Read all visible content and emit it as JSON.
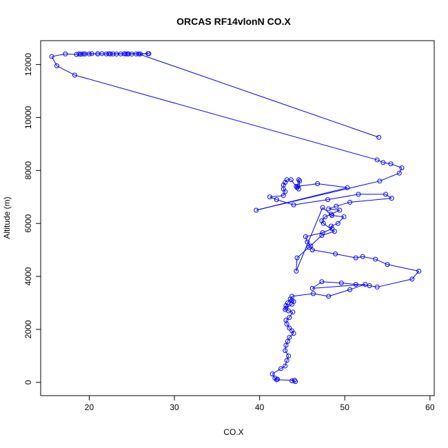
{
  "chart_data": {
    "type": "line",
    "title": "ORCAS RF14vlonN CO.X",
    "xlabel": "CO.X",
    "ylabel": "Altitude (m)",
    "xlim": [
      14.3,
      60.5
    ],
    "ylim": [
      -500,
      12900
    ],
    "xticks": [
      20,
      30,
      40,
      50,
      60
    ],
    "yticks": [
      0,
      2000,
      4000,
      6000,
      8000,
      10000,
      12000
    ],
    "grid": false,
    "legend": "none",
    "line_color": "#0000ff",
    "marker": "open-circle",
    "series": [
      {
        "x": [
          44.2,
          43.8,
          44.1,
          42.0,
          42.1,
          41.8,
          41.5,
          42.5,
          43.0,
          43.2,
          43.4,
          43.0,
          43.1,
          43.3,
          43.5,
          44.0,
          43.8,
          43.5,
          43.2,
          43.1,
          43.5,
          43.9,
          43.4,
          43.1,
          43.8,
          44.0,
          43.6,
          43.3,
          43.1,
          43.0,
          43.8,
          43.8,
          46.3,
          48.1,
          50.6,
          52.4,
          46.2,
          47.3,
          49.6,
          51.3,
          52.9,
          53.8,
          57.9,
          58.7,
          55.0,
          53.6,
          52.1,
          51.3,
          48.9,
          46.2,
          46.0,
          45.6,
          45.4,
          47.4,
          48.5,
          48.4,
          49.2,
          49.9,
          48.5,
          47.4,
          44.3,
          44.4,
          45.8,
          47.3,
          48.8,
          47.5,
          47.3,
          47.7,
          48.4,
          49.4,
          48.1,
          49.0,
          50.6,
          55.5,
          54.8,
          51.6,
          48.0,
          44.0,
          42.0,
          41.2,
          42.8,
          43.0,
          42.8,
          42.8,
          43.0,
          43.2,
          43.7,
          44.3,
          44.6,
          44.7,
          44.6,
          44.4,
          44.5,
          46.8,
          50.3,
          39.6,
          54.1,
          56.4,
          56.7,
          55.4,
          54.5,
          53.8,
          18.3,
          16.2,
          15.6,
          17.2,
          18.5,
          19.0,
          19.5,
          20.3,
          21.0,
          21.5,
          22.0,
          22.3,
          22.8,
          23.2,
          23.7,
          24.1,
          24.3,
          24.6,
          25.0,
          25.5,
          26.0,
          27.0,
          24.5,
          22.5,
          21.0,
          20.0,
          19.3,
          18.8,
          26.9,
          25.8,
          54.0
        ],
        "y": [
          30,
          60,
          80,
          100,
          120,
          160,
          320,
          520,
          620,
          830,
          1000,
          1200,
          1400,
          1550,
          1700,
          1850,
          1950,
          2050,
          2200,
          2350,
          2450,
          2650,
          2700,
          2800,
          2950,
          3050,
          3150,
          3000,
          2900,
          2750,
          3100,
          3250,
          3350,
          3250,
          3500,
          3700,
          3550,
          3800,
          3750,
          3700,
          3650,
          3600,
          3900,
          4200,
          4450,
          4650,
          4750,
          4700,
          4850,
          5000,
          5150,
          5300,
          5500,
          5650,
          5800,
          5900,
          6000,
          6250,
          6300,
          6600,
          4200,
          4700,
          5100,
          5550,
          5700,
          6000,
          6100,
          6250,
          6350,
          6500,
          6550,
          6650,
          6800,
          6950,
          7100,
          7100,
          6900,
          6700,
          6900,
          7000,
          7050,
          7200,
          7300,
          7450,
          7550,
          7650,
          7650,
          7400,
          7300,
          7600,
          7650,
          7350,
          7400,
          7500,
          7350,
          6500,
          7600,
          7900,
          8100,
          8250,
          8300,
          8400,
          11600,
          11950,
          12300,
          12400,
          12380,
          12390,
          12400,
          12410,
          12400,
          12410,
          12400,
          12405,
          12400,
          12395,
          12400,
          12405,
          12400,
          12400,
          12395,
          12400,
          12400,
          12410,
          12400,
          12400,
          12405,
          12400,
          12400,
          12400,
          12410,
          12400,
          9250
        ]
      }
    ]
  }
}
